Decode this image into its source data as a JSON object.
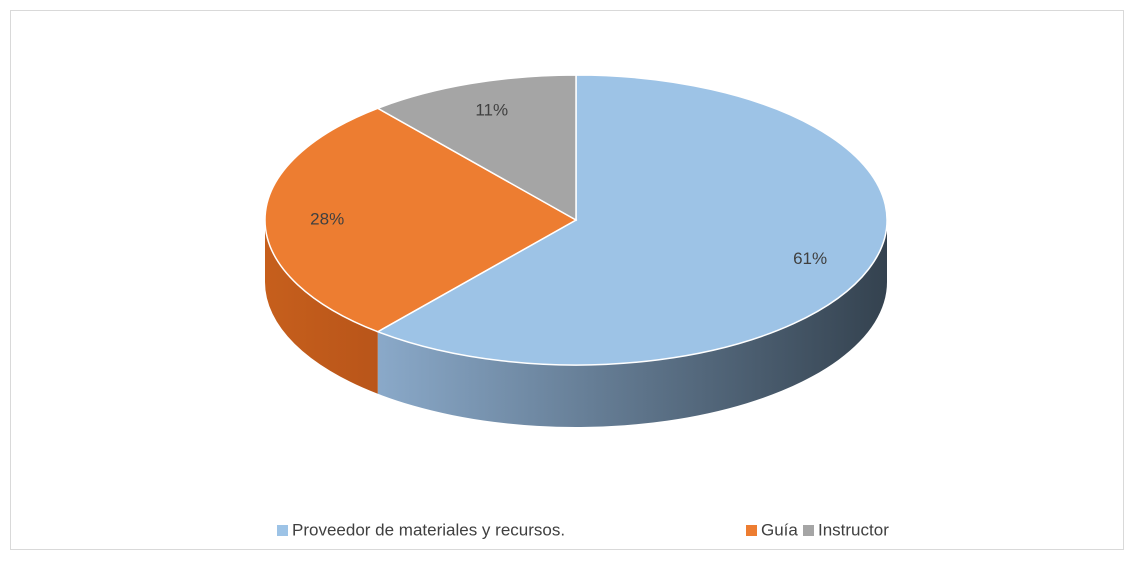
{
  "chart_data": {
    "type": "pie3d",
    "categories": [
      "Proveedor de materiales y recursos.",
      "Guía",
      "Instructor"
    ],
    "values": [
      61,
      28,
      11
    ],
    "value_labels": [
      "61%",
      "28%",
      "11%"
    ],
    "colors": [
      "#9dc3e6",
      "#ed7d31",
      "#a5a5a5"
    ],
    "legend": "bottom"
  }
}
